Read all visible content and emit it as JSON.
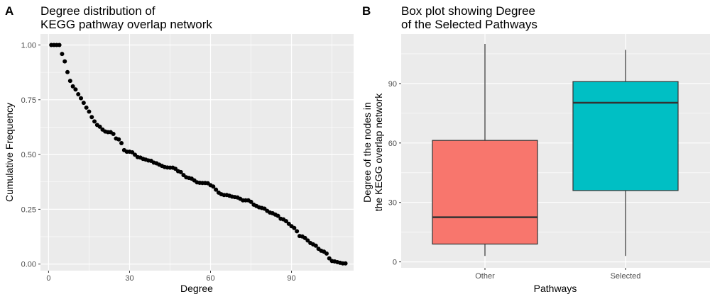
{
  "chart_data": [
    {
      "type": "scatter",
      "tag": "A",
      "title": [
        "Degree distribution of",
        "KEGG pathway overlap network"
      ],
      "xlabel": "Degree",
      "ylabel": "Cumulative Frequency",
      "xlim": [
        -3,
        113
      ],
      "ylim": [
        -0.03,
        1.05
      ],
      "xticks": [
        0,
        30,
        60,
        90
      ],
      "yticks": [
        0,
        0.25,
        0.5,
        0.75,
        1
      ],
      "ytick_labels": [
        "0.00",
        "0.25",
        "0.50",
        "0.75",
        "1.00"
      ],
      "grid": true,
      "x": [
        1,
        2,
        3,
        4,
        5,
        6,
        7,
        8,
        9,
        10,
        11,
        12,
        13,
        14,
        15,
        16,
        17,
        18,
        19,
        20,
        21,
        22,
        23,
        24,
        25,
        26,
        27,
        28,
        29,
        30,
        31,
        32,
        33,
        34,
        35,
        36,
        37,
        38,
        39,
        40,
        41,
        42,
        43,
        44,
        45,
        46,
        47,
        48,
        49,
        50,
        51,
        52,
        53,
        54,
        55,
        56,
        57,
        58,
        59,
        60,
        61,
        62,
        63,
        64,
        65,
        66,
        67,
        68,
        69,
        70,
        71,
        72,
        73,
        74,
        75,
        76,
        77,
        78,
        79,
        80,
        81,
        82,
        83,
        84,
        85,
        86,
        87,
        88,
        89,
        90,
        91,
        92,
        93,
        94,
        95,
        96,
        97,
        98,
        99,
        100,
        101,
        102,
        103,
        104,
        105,
        106,
        107,
        108,
        109,
        110
      ],
      "y": [
        1,
        1,
        1,
        1,
        0.959,
        0.925,
        0.876,
        0.836,
        0.811,
        0.797,
        0.775,
        0.757,
        0.736,
        0.714,
        0.696,
        0.671,
        0.651,
        0.635,
        0.627,
        0.614,
        0.605,
        0.602,
        0.602,
        0.594,
        0.573,
        0.569,
        0.552,
        0.52,
        0.513,
        0.513,
        0.51,
        0.499,
        0.488,
        0.486,
        0.48,
        0.477,
        0.473,
        0.471,
        0.463,
        0.46,
        0.454,
        0.448,
        0.443,
        0.441,
        0.44,
        0.44,
        0.435,
        0.424,
        0.42,
        0.406,
        0.396,
        0.393,
        0.39,
        0.382,
        0.373,
        0.371,
        0.37,
        0.37,
        0.369,
        0.36,
        0.354,
        0.34,
        0.326,
        0.319,
        0.315,
        0.315,
        0.312,
        0.308,
        0.306,
        0.304,
        0.298,
        0.291,
        0.291,
        0.291,
        0.284,
        0.271,
        0.265,
        0.259,
        0.256,
        0.253,
        0.243,
        0.235,
        0.232,
        0.226,
        0.22,
        0.207,
        0.204,
        0.196,
        0.184,
        0.173,
        0.165,
        0.15,
        0.128,
        0.126,
        0.119,
        0.108,
        0.096,
        0.09,
        0.084,
        0.07,
        0.061,
        0.057,
        0.048,
        0.026,
        0.014,
        0.012,
        0.009,
        0.006,
        0.003,
        0.003
      ]
    },
    {
      "type": "box",
      "tag": "B",
      "title": [
        "Box plot showing Degree",
        "of the Selected Pathways"
      ],
      "xlabel": "Pathways",
      "ylabel": [
        "Degree of the nodes in",
        "the KEGG overlap network"
      ],
      "ylim": [
        -3,
        115
      ],
      "yticks": [
        0,
        30,
        60,
        90
      ],
      "grid": true,
      "categories": [
        "Other",
        "Selected"
      ],
      "colors": [
        "#F8766D",
        "#00BFC4"
      ],
      "boxes": [
        {
          "min": 3,
          "q1": 9,
          "median": 22.5,
          "q3": 61.3,
          "max": 110
        },
        {
          "min": 3,
          "q1": 36,
          "median": 80.3,
          "q3": 91,
          "max": 107
        }
      ]
    }
  ]
}
